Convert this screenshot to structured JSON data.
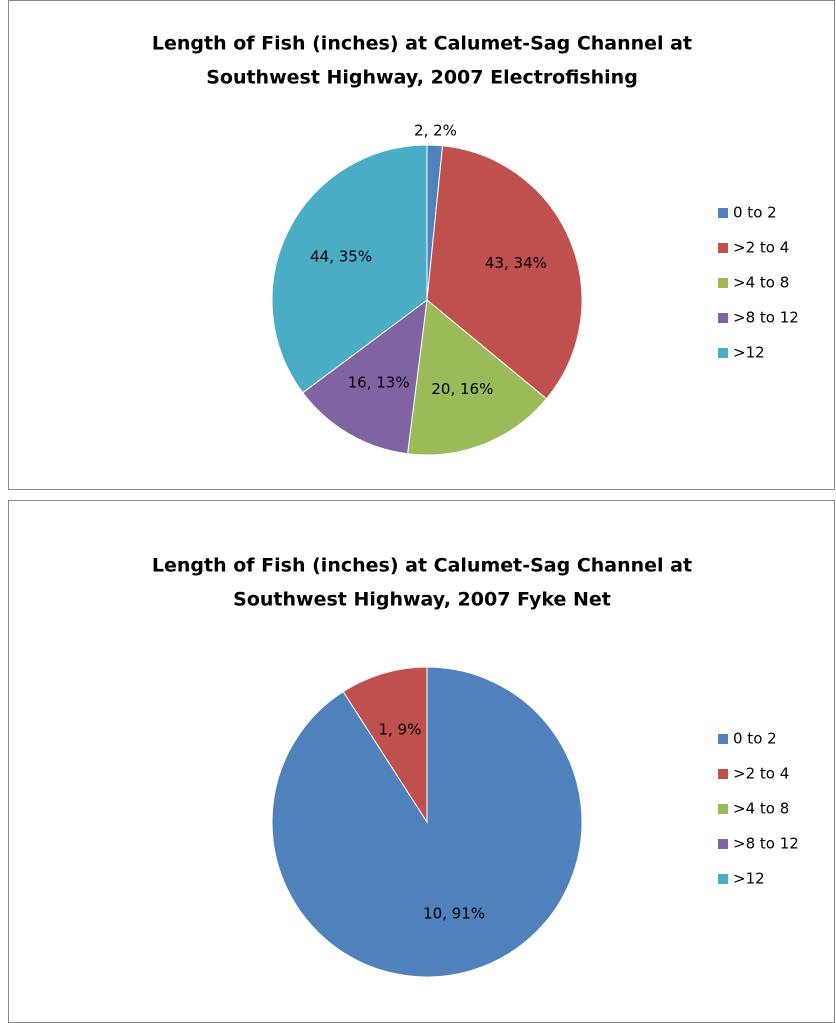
{
  "chart_data": [
    {
      "type": "pie",
      "title": [
        "Length of Fish (inches) at Calumet-Sag Channel at",
        "Southwest Highway, 2007 Electrofishing"
      ],
      "categories": [
        "0 to 2",
        ">2 to 4",
        ">4 to 8",
        ">8 to 12",
        ">12"
      ],
      "values": [
        2,
        43,
        20,
        16,
        44
      ],
      "value_labels": [
        "2, 2%",
        "43, 34%",
        "20, 16%",
        "16, 13%",
        "44, 35%"
      ],
      "colors": [
        "#4f81bd",
        "#c0504d",
        "#9bbb59",
        "#8064a2",
        "#4bacc6"
      ],
      "legend": "right"
    },
    {
      "type": "pie",
      "title": [
        "Length of Fish (inches) at Calumet-Sag Channel at",
        "Southwest Highway, 2007 Fyke Net"
      ],
      "categories": [
        "0 to 2",
        ">2 to 4",
        ">4 to 8",
        ">8 to 12",
        ">12"
      ],
      "values": [
        10,
        1,
        0,
        0,
        0
      ],
      "value_labels": [
        "10, 91%",
        "1, 9%",
        null,
        null,
        null
      ],
      "colors": [
        "#4f81bd",
        "#c0504d",
        "#9bbb59",
        "#8064a2",
        "#4bacc6"
      ],
      "legend": "right"
    }
  ]
}
